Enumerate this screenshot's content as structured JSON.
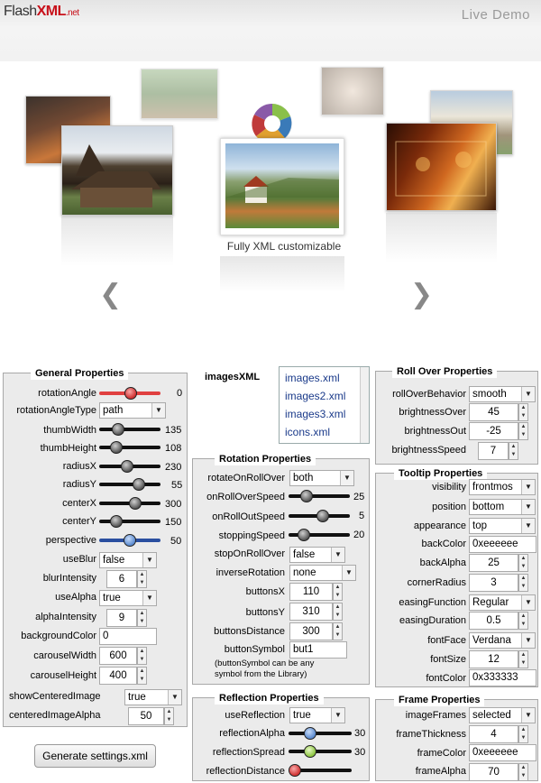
{
  "header": {
    "logo_flash": "Flash",
    "logo_xml": "XML",
    "logo_net": ".net",
    "live_demo": "Live Demo"
  },
  "carousel": {
    "caption": "Fully XML customizable",
    "prev_icon": "chevron-left-icon",
    "next_icon": "chevron-right-icon"
  },
  "general": {
    "title": "General Properties",
    "rotationAngle": {
      "label": "rotationAngle",
      "value": "0"
    },
    "rotationAngleType": {
      "label": "rotationAngleType",
      "value": "path"
    },
    "thumbWidth": {
      "label": "thumbWidth",
      "value": "135"
    },
    "thumbHeight": {
      "label": "thumbHeight",
      "value": "108"
    },
    "radiusX": {
      "label": "radiusX",
      "value": "230"
    },
    "radiusY": {
      "label": "radiusY",
      "value": "55"
    },
    "centerX": {
      "label": "centerX",
      "value": "300"
    },
    "centerY": {
      "label": "centerY",
      "value": "150"
    },
    "perspective": {
      "label": "perspective",
      "value": "50"
    },
    "useBlur": {
      "label": "useBlur",
      "value": "false"
    },
    "blurIntensity": {
      "label": "blurIntensity",
      "value": "6"
    },
    "useAlpha": {
      "label": "useAlpha",
      "value": "true"
    },
    "alphaIntensity": {
      "label": "alphaIntensity",
      "value": "9"
    },
    "backgroundColor": {
      "label": "backgroundColor",
      "value": "0"
    },
    "carouselWidth": {
      "label": "carouselWidth",
      "value": "600"
    },
    "carouselHeight": {
      "label": "carouselHeight",
      "value": "400"
    },
    "showCenteredImage": {
      "label": "showCenteredImage",
      "value": "true"
    },
    "centeredImageAlpha": {
      "label": "centeredImageAlpha",
      "value": "50"
    }
  },
  "imagesXML": {
    "label": "imagesXML",
    "items": [
      "images.xml",
      "images2.xml",
      "images3.xml",
      "icons.xml"
    ]
  },
  "rotation": {
    "title": "Rotation Properties",
    "rotateOnRollOver": {
      "label": "rotateOnRollOver",
      "value": "both"
    },
    "onRollOverSpeed": {
      "label": "onRollOverSpeed",
      "value": "25"
    },
    "onRollOutSpeed": {
      "label": "onRollOutSpeed",
      "value": "5"
    },
    "stoppingSpeed": {
      "label": "stoppingSpeed",
      "value": "20"
    },
    "stopOnRollOver": {
      "label": "stopOnRollOver",
      "value": "false"
    },
    "inverseRotation": {
      "label": "inverseRotation",
      "value": "none"
    },
    "buttonsX": {
      "label": "buttonsX",
      "value": "110"
    },
    "buttonsY": {
      "label": "buttonsY",
      "value": "310"
    },
    "buttonsDistance": {
      "label": "buttonsDistance",
      "value": "300"
    },
    "buttonSymbol": {
      "label": "buttonSymbol",
      "value": "but1",
      "note1": "(buttonSymbol can be any",
      "note2": "symbol from the Library)"
    }
  },
  "rollover": {
    "title": "Roll Over Properties",
    "rollOverBehavior": {
      "label": "rollOverBehavior",
      "value": "smooth"
    },
    "brightnessOver": {
      "label": "brightnessOver",
      "value": "45"
    },
    "brightnessOut": {
      "label": "brightnessOut",
      "value": "-25"
    },
    "brightnessSpeed": {
      "label": "brightnessSpeed",
      "value": "7"
    }
  },
  "tooltip": {
    "title": "Tooltip Properties",
    "visibility": {
      "label": "visibility",
      "value": "frontmos"
    },
    "position": {
      "label": "position",
      "value": "bottom"
    },
    "appearance": {
      "label": "appearance",
      "value": "top"
    },
    "backColor": {
      "label": "backColor",
      "value": "0xeeeeee"
    },
    "backAlpha": {
      "label": "backAlpha",
      "value": "25"
    },
    "cornerRadius": {
      "label": "cornerRadius",
      "value": "3"
    },
    "easingFunction": {
      "label": "easingFunction",
      "value": "Regular"
    },
    "easingDuration": {
      "label": "easingDuration",
      "value": "0.5"
    },
    "fontFace": {
      "label": "fontFace",
      "value": "Verdana"
    },
    "fontSize": {
      "label": "fontSize",
      "value": "12"
    },
    "fontColor": {
      "label": "fontColor",
      "value": "0x333333"
    }
  },
  "reflection": {
    "title": "Reflection Properties",
    "useReflection": {
      "label": "useReflection",
      "value": "true"
    },
    "reflectionAlpha": {
      "label": "reflectionAlpha",
      "value": "30"
    },
    "reflectionSpread": {
      "label": "reflectionSpread",
      "value": "30"
    },
    "reflectionDistance": {
      "label": "reflectionDistance",
      "value": ""
    }
  },
  "frame": {
    "title": "Frame Properties",
    "imageFrames": {
      "label": "imageFrames",
      "value": "selected"
    },
    "frameThickness": {
      "label": "frameThickness",
      "value": "4"
    },
    "frameColor": {
      "label": "frameColor",
      "value": "0xeeeeee"
    },
    "frameAlpha": {
      "label": "frameAlpha",
      "value": "70"
    }
  },
  "generate_button": "Generate settings.xml",
  "colors": {
    "brand_red": "#c8101a",
    "slider_red": "#e04040",
    "slider_blue": "#2a4fa0",
    "knob_green": "#8cc63f"
  }
}
